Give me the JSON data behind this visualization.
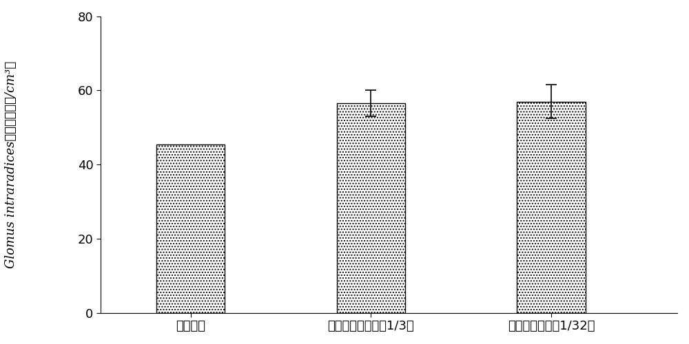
{
  "categories": [
    "初始菌剂",
    "传统方法（菌剂量1/3）",
    "新方法（菌剂量1/32）"
  ],
  "values": [
    45.5,
    56.5,
    57.0
  ],
  "errors": [
    0.0,
    3.5,
    4.5
  ],
  "ylim": [
    0,
    80
  ],
  "yticks": [
    0,
    20,
    40,
    60,
    80
  ],
  "ylabel_latin": "Glomus intraradices",
  "ylabel_chinese": "抱子密度（个/cm³）",
  "bar_color": "#ffffff",
  "bar_edgecolor": "#000000",
  "bar_width": 0.38,
  "x_positions": [
    1,
    2,
    3
  ],
  "xlim": [
    0.5,
    3.7
  ],
  "figsize": [
    10,
    5
  ],
  "dpi": 100,
  "background_color": "#ffffff",
  "ylabel_fontsize": 13,
  "tick_fontsize": 13,
  "xlabel_fontsize": 13,
  "errorbar_capsize": 6,
  "errorbar_linewidth": 1.2,
  "errorbar_capthick": 1.2
}
